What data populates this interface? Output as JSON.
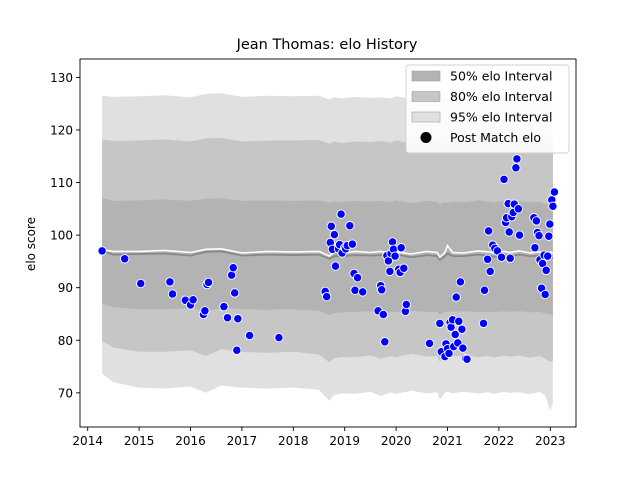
{
  "chart_data": {
    "type": "scatter",
    "title": "Jean Thomas: elo History",
    "xlabel": "",
    "ylabel": "elo score",
    "xlim": [
      2013.85,
      2023.5
    ],
    "ylim": [
      63.5,
      133.5
    ],
    "xticks": [
      "2014",
      "2015",
      "2016",
      "2017",
      "2018",
      "2019",
      "2020",
      "2021",
      "2022",
      "2023"
    ],
    "yticks": [
      "70",
      "80",
      "90",
      "100",
      "110",
      "120",
      "130"
    ],
    "legend": {
      "position": "top-right",
      "entries": [
        {
          "label": "50% elo Interval",
          "color": "#b3b3b3"
        },
        {
          "label": "80% elo Interval",
          "color": "#c6c6c6"
        },
        {
          "label": "95% elo Interval",
          "color": "#e0e0e0"
        },
        {
          "label": "Post Match elo",
          "color": "#000000"
        }
      ]
    },
    "colors": {
      "points": "#0000ff",
      "mean_line": "#ffffff",
      "median_line": "#888888"
    },
    "bands": {
      "x": [
        2014.28,
        2014.5,
        2015.0,
        2015.5,
        2016.0,
        2016.3,
        2016.6,
        2017.0,
        2017.5,
        2018.0,
        2018.5,
        2018.7,
        2018.8,
        2018.95,
        2019.2,
        2019.5,
        2019.7,
        2019.9,
        2020.0,
        2020.3,
        2020.6,
        2020.8,
        2020.85,
        2020.95,
        2021.0,
        2021.1,
        2021.3,
        2021.6,
        2021.8,
        2021.9,
        2022.1,
        2022.2,
        2022.4,
        2022.6,
        2022.8,
        2022.9,
        2023.0,
        2023.05
      ],
      "upper95": [
        126.5,
        126.3,
        126.4,
        126.6,
        126.2,
        126.9,
        127.0,
        126.3,
        126.5,
        126.4,
        126.5,
        125.8,
        126.2,
        126.0,
        126.3,
        126.1,
        126.2,
        126.0,
        126.4,
        125.9,
        126.3,
        126.1,
        125.2,
        126.0,
        125.8,
        126.3,
        126.0,
        126.5,
        126.3,
        126.0,
        126.4,
        126.2,
        126.5,
        126.0,
        126.1,
        125.6,
        126.3,
        126.0
      ],
      "lower95": [
        73.7,
        72.0,
        71.0,
        70.8,
        71.2,
        70.0,
        71.4,
        71.0,
        70.8,
        71.0,
        70.6,
        68.5,
        69.6,
        69.9,
        69.8,
        70.2,
        69.4,
        70.1,
        69.8,
        70.4,
        69.9,
        70.1,
        68.7,
        70.0,
        70.3,
        69.9,
        70.2,
        69.9,
        70.1,
        69.8,
        70.2,
        70.0,
        70.1,
        69.7,
        70.2,
        69.5,
        66.6,
        68.2
      ],
      "upper80": [
        118.2,
        117.9,
        118.0,
        118.2,
        117.8,
        118.4,
        118.5,
        117.8,
        118.0,
        118.0,
        118.1,
        117.4,
        117.8,
        117.5,
        117.8,
        117.7,
        117.9,
        117.6,
        118.0,
        117.4,
        117.8,
        117.7,
        116.9,
        117.6,
        117.3,
        117.8,
        117.5,
        118.0,
        117.8,
        117.5,
        117.9,
        117.8,
        118.0,
        117.5,
        117.7,
        117.1,
        117.7,
        117.5
      ],
      "lower80": [
        79.8,
        78.6,
        77.8,
        77.8,
        78.1,
        77.0,
        78.3,
        77.8,
        77.6,
        77.8,
        77.3,
        75.8,
        76.6,
        76.8,
        76.8,
        77.1,
        76.5,
        77.0,
        76.8,
        77.4,
        76.9,
        77.0,
        75.9,
        77.0,
        77.2,
        76.9,
        77.1,
        76.8,
        77.0,
        76.7,
        77.1,
        76.9,
        77.1,
        76.7,
        77.0,
        76.5,
        75.9,
        76.0
      ],
      "upper50": [
        107.0,
        106.5,
        106.6,
        106.8,
        106.5,
        106.9,
        107.0,
        106.5,
        106.6,
        106.5,
        106.6,
        106.2,
        106.4,
        106.3,
        106.5,
        106.4,
        106.5,
        106.3,
        106.6,
        106.1,
        106.5,
        106.3,
        105.9,
        106.3,
        106.1,
        106.4,
        106.2,
        106.6,
        106.4,
        106.2,
        106.5,
        106.4,
        106.5,
        106.2,
        106.3,
        105.9,
        106.0,
        106.0
      ],
      "lower50": [
        87.0,
        86.3,
        85.9,
        85.9,
        86.1,
        85.5,
        86.2,
        85.9,
        85.8,
        85.9,
        85.6,
        84.8,
        85.2,
        85.3,
        85.4,
        85.5,
        85.2,
        85.4,
        85.3,
        85.6,
        85.4,
        85.4,
        84.9,
        85.4,
        85.5,
        85.4,
        85.5,
        85.4,
        85.4,
        85.3,
        85.5,
        85.4,
        85.5,
        85.3,
        85.4,
        85.1,
        84.9,
        84.9
      ],
      "mean": [
        97.2,
        96.9,
        96.9,
        97.1,
        96.7,
        97.3,
        97.4,
        96.6,
        96.9,
        96.8,
        96.9,
        96.0,
        96.8,
        96.6,
        96.9,
        96.7,
        96.9,
        96.6,
        96.8,
        96.4,
        96.9,
        96.7,
        95.8,
        96.7,
        98.0,
        96.7,
        96.6,
        97.0,
        96.8,
        96.6,
        96.9,
        96.7,
        97.0,
        96.6,
        96.8,
        96.2,
        96.8,
        96.6
      ],
      "median": [
        97.0,
        96.3,
        96.4,
        96.5,
        96.1,
        96.8,
        96.9,
        96.1,
        96.3,
        96.2,
        96.3,
        95.5,
        96.0,
        96.0,
        96.2,
        96.1,
        96.2,
        96.0,
        96.3,
        95.8,
        96.2,
        96.0,
        95.3,
        96.0,
        96.5,
        96.0,
        96.0,
        96.3,
        96.1,
        95.9,
        96.2,
        96.0,
        96.3,
        96.0,
        96.1,
        95.6,
        95.8,
        95.6
      ]
    },
    "points": [
      [
        2014.28,
        97.0
      ],
      [
        2014.72,
        95.5
      ],
      [
        2015.03,
        90.8
      ],
      [
        2015.6,
        91.1
      ],
      [
        2015.65,
        88.8
      ],
      [
        2015.9,
        87.6
      ],
      [
        2016.0,
        86.7
      ],
      [
        2016.05,
        87.7
      ],
      [
        2016.25,
        84.9
      ],
      [
        2016.28,
        85.6
      ],
      [
        2016.32,
        90.6
      ],
      [
        2016.35,
        91.0
      ],
      [
        2016.65,
        86.4
      ],
      [
        2016.72,
        84.3
      ],
      [
        2016.8,
        92.4
      ],
      [
        2016.83,
        93.8
      ],
      [
        2016.86,
        89.0
      ],
      [
        2016.9,
        78.1
      ],
      [
        2016.92,
        84.1
      ],
      [
        2017.15,
        80.9
      ],
      [
        2017.72,
        80.5
      ],
      [
        2018.62,
        89.3
      ],
      [
        2018.65,
        88.3
      ],
      [
        2018.72,
        98.6
      ],
      [
        2018.74,
        101.7
      ],
      [
        2018.76,
        97.3
      ],
      [
        2018.8,
        100.1
      ],
      [
        2018.82,
        94.1
      ],
      [
        2018.88,
        97.4
      ],
      [
        2018.9,
        98.2
      ],
      [
        2018.93,
        104.0
      ],
      [
        2018.95,
        96.6
      ],
      [
        2019.0,
        97.6
      ],
      [
        2019.02,
        97.4
      ],
      [
        2019.05,
        98.0
      ],
      [
        2019.1,
        101.8
      ],
      [
        2019.15,
        98.3
      ],
      [
        2019.18,
        92.7
      ],
      [
        2019.2,
        89.5
      ],
      [
        2019.25,
        91.9
      ],
      [
        2019.35,
        89.2
      ],
      [
        2019.65,
        85.6
      ],
      [
        2019.7,
        90.4
      ],
      [
        2019.72,
        89.6
      ],
      [
        2019.75,
        84.9
      ],
      [
        2019.78,
        79.7
      ],
      [
        2019.82,
        96.1
      ],
      [
        2019.85,
        95.1
      ],
      [
        2019.88,
        93.1
      ],
      [
        2019.9,
        96.5
      ],
      [
        2019.93,
        98.7
      ],
      [
        2019.95,
        97.3
      ],
      [
        2019.98,
        96.0
      ],
      [
        2020.05,
        93.5
      ],
      [
        2020.08,
        92.9
      ],
      [
        2020.1,
        97.6
      ],
      [
        2020.15,
        93.7
      ],
      [
        2020.18,
        85.5
      ],
      [
        2020.2,
        86.8
      ],
      [
        2020.65,
        79.4
      ],
      [
        2020.85,
        83.2
      ],
      [
        2020.88,
        77.8
      ],
      [
        2020.95,
        76.9
      ],
      [
        2020.97,
        79.3
      ],
      [
        2021.0,
        78.4
      ],
      [
        2021.03,
        77.5
      ],
      [
        2021.05,
        83.4
      ],
      [
        2021.07,
        82.5
      ],
      [
        2021.1,
        83.9
      ],
      [
        2021.12,
        78.8
      ],
      [
        2021.15,
        81.1
      ],
      [
        2021.17,
        88.2
      ],
      [
        2021.2,
        79.5
      ],
      [
        2021.22,
        83.6
      ],
      [
        2021.25,
        91.1
      ],
      [
        2021.28,
        82.1
      ],
      [
        2021.3,
        78.5
      ],
      [
        2021.35,
        76.5
      ],
      [
        2021.38,
        76.4
      ],
      [
        2021.7,
        83.2
      ],
      [
        2021.72,
        89.5
      ],
      [
        2021.78,
        95.4
      ],
      [
        2021.8,
        100.8
      ],
      [
        2021.83,
        93.1
      ],
      [
        2021.88,
        98.1
      ],
      [
        2021.92,
        97.5
      ],
      [
        2021.97,
        97.0
      ],
      [
        2022.05,
        95.8
      ],
      [
        2022.1,
        110.6
      ],
      [
        2022.13,
        102.4
      ],
      [
        2022.15,
        103.3
      ],
      [
        2022.18,
        106.0
      ],
      [
        2022.2,
        100.6
      ],
      [
        2022.22,
        95.6
      ],
      [
        2022.25,
        103.5
      ],
      [
        2022.28,
        104.3
      ],
      [
        2022.3,
        105.9
      ],
      [
        2022.33,
        112.8
      ],
      [
        2022.35,
        114.5
      ],
      [
        2022.38,
        105.0
      ],
      [
        2022.4,
        100.0
      ],
      [
        2022.68,
        103.3
      ],
      [
        2022.7,
        97.6
      ],
      [
        2022.73,
        102.7
      ],
      [
        2022.75,
        100.5
      ],
      [
        2022.78,
        99.9
      ],
      [
        2022.8,
        95.3
      ],
      [
        2022.83,
        89.9
      ],
      [
        2022.85,
        94.6
      ],
      [
        2022.88,
        96.2
      ],
      [
        2022.9,
        88.7
      ],
      [
        2022.92,
        93.3
      ],
      [
        2022.95,
        96.0
      ],
      [
        2022.97,
        99.8
      ],
      [
        2022.99,
        102.1
      ],
      [
        2023.03,
        106.7
      ],
      [
        2023.05,
        105.5
      ],
      [
        2023.08,
        108.2
      ]
    ]
  }
}
